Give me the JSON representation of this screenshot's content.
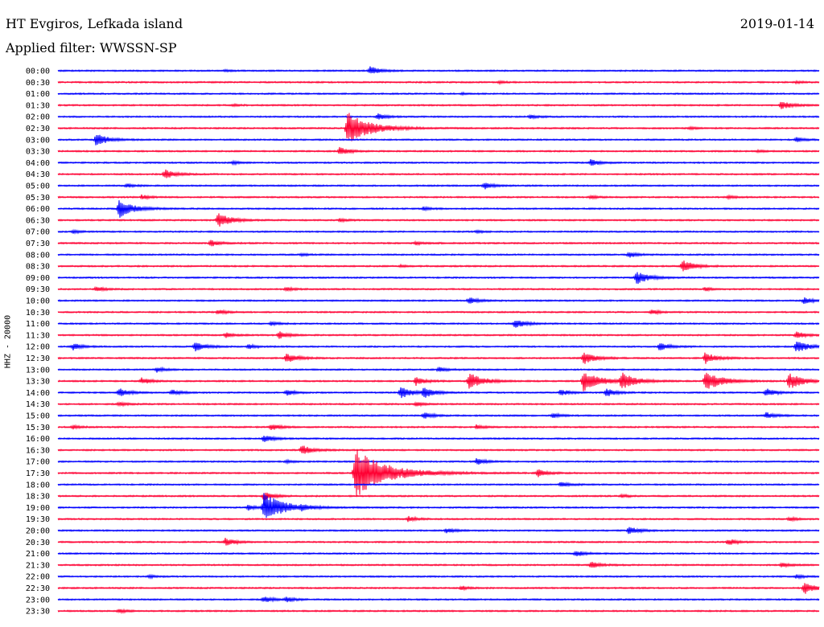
{
  "header": {
    "station": "HT Evgiros, Lefkada island",
    "filter": "Applied filter: WWSSN-SP",
    "date": "2019-01-14"
  },
  "colors": {
    "trace_a": "#0000ff",
    "trace_b": "#ff0033",
    "background": "#ffffff",
    "text": "#000000"
  },
  "chart_data": {
    "type": "line",
    "title": "HT Evgiros, Lefkada island",
    "subtitle": "Applied filter: WWSSN-SP",
    "date": "2019-01-14",
    "ylabel": "HHZ - 20000",
    "xlabel": "",
    "grid": false,
    "legend": "none",
    "alternating_colors": [
      "#0000ff",
      "#ff0033"
    ],
    "rows": [
      "00:00",
      "00:30",
      "01:00",
      "01:30",
      "02:00",
      "02:30",
      "03:00",
      "03:30",
      "04:00",
      "04:30",
      "05:00",
      "05:30",
      "06:00",
      "06:30",
      "07:00",
      "07:30",
      "08:00",
      "08:30",
      "09:00",
      "09:30",
      "10:00",
      "10:30",
      "11:00",
      "11:30",
      "12:00",
      "12:30",
      "13:00",
      "13:30",
      "14:00",
      "14:30",
      "15:00",
      "15:30",
      "16:00",
      "16:30",
      "17:00",
      "17:30",
      "18:00",
      "18:30",
      "19:00",
      "19:30",
      "20:00",
      "20:30",
      "21:00",
      "21:30",
      "22:00",
      "22:30",
      "23:00",
      "23:30"
    ],
    "events": [
      {
        "row": 0,
        "x": 0.41,
        "amp": 1.0
      },
      {
        "row": 0,
        "x": 0.22,
        "amp": 0.2
      },
      {
        "row": 1,
        "x": 0.58,
        "amp": 0.3
      },
      {
        "row": 1,
        "x": 0.97,
        "amp": 0.25
      },
      {
        "row": 2,
        "x": 0.53,
        "amp": 0.2
      },
      {
        "row": 3,
        "x": 0.95,
        "amp": 1.1
      },
      {
        "row": 3,
        "x": 0.23,
        "amp": 0.2
      },
      {
        "row": 4,
        "x": 0.42,
        "amp": 0.8
      },
      {
        "row": 4,
        "x": 0.62,
        "amp": 0.5
      },
      {
        "row": 5,
        "x": 0.38,
        "amp": 4.0
      },
      {
        "row": 5,
        "x": 0.83,
        "amp": 0.3
      },
      {
        "row": 6,
        "x": 0.05,
        "amp": 1.5
      },
      {
        "row": 6,
        "x": 0.97,
        "amp": 0.6
      },
      {
        "row": 7,
        "x": 0.37,
        "amp": 1.0
      },
      {
        "row": 7,
        "x": 0.92,
        "amp": 0.3
      },
      {
        "row": 8,
        "x": 0.7,
        "amp": 0.8
      },
      {
        "row": 8,
        "x": 0.23,
        "amp": 0.4
      },
      {
        "row": 9,
        "x": 0.14,
        "amp": 1.2
      },
      {
        "row": 10,
        "x": 0.56,
        "amp": 0.8
      },
      {
        "row": 10,
        "x": 0.09,
        "amp": 0.5
      },
      {
        "row": 11,
        "x": 0.11,
        "amp": 0.6
      },
      {
        "row": 11,
        "x": 0.7,
        "amp": 0.4
      },
      {
        "row": 11,
        "x": 0.88,
        "amp": 0.4
      },
      {
        "row": 12,
        "x": 0.08,
        "amp": 2.2
      },
      {
        "row": 12,
        "x": 0.48,
        "amp": 0.4
      },
      {
        "row": 13,
        "x": 0.21,
        "amp": 1.8
      },
      {
        "row": 13,
        "x": 0.37,
        "amp": 0.4
      },
      {
        "row": 14,
        "x": 0.02,
        "amp": 0.4
      },
      {
        "row": 14,
        "x": 0.55,
        "amp": 0.3
      },
      {
        "row": 15,
        "x": 0.2,
        "amp": 0.8
      },
      {
        "row": 15,
        "x": 0.47,
        "amp": 0.4
      },
      {
        "row": 16,
        "x": 0.75,
        "amp": 0.7
      },
      {
        "row": 16,
        "x": 0.32,
        "amp": 0.3
      },
      {
        "row": 17,
        "x": 0.82,
        "amp": 1.5
      },
      {
        "row": 17,
        "x": 0.45,
        "amp": 0.3
      },
      {
        "row": 18,
        "x": 0.76,
        "amp": 1.6
      },
      {
        "row": 19,
        "x": 0.05,
        "amp": 0.6
      },
      {
        "row": 19,
        "x": 0.3,
        "amp": 0.5
      },
      {
        "row": 19,
        "x": 0.85,
        "amp": 0.5
      },
      {
        "row": 20,
        "x": 0.54,
        "amp": 0.8
      },
      {
        "row": 20,
        "x": 0.98,
        "amp": 0.8
      },
      {
        "row": 21,
        "x": 0.21,
        "amp": 0.6
      },
      {
        "row": 21,
        "x": 0.78,
        "amp": 0.6
      },
      {
        "row": 22,
        "x": 0.6,
        "amp": 1.2
      },
      {
        "row": 22,
        "x": 0.28,
        "amp": 0.5
      },
      {
        "row": 23,
        "x": 0.22,
        "amp": 0.6
      },
      {
        "row": 23,
        "x": 0.29,
        "amp": 0.9
      },
      {
        "row": 23,
        "x": 0.97,
        "amp": 0.9
      },
      {
        "row": 24,
        "x": 0.02,
        "amp": 0.8
      },
      {
        "row": 24,
        "x": 0.18,
        "amp": 1.2
      },
      {
        "row": 24,
        "x": 0.25,
        "amp": 0.6
      },
      {
        "row": 24,
        "x": 0.79,
        "amp": 1.0
      },
      {
        "row": 24,
        "x": 0.97,
        "amp": 1.5
      },
      {
        "row": 25,
        "x": 0.3,
        "amp": 1.2
      },
      {
        "row": 25,
        "x": 0.69,
        "amp": 1.5
      },
      {
        "row": 25,
        "x": 0.85,
        "amp": 1.4
      },
      {
        "row": 26,
        "x": 0.13,
        "amp": 0.6
      },
      {
        "row": 26,
        "x": 0.5,
        "amp": 0.6
      },
      {
        "row": 27,
        "x": 0.11,
        "amp": 0.8
      },
      {
        "row": 27,
        "x": 0.47,
        "amp": 1.0
      },
      {
        "row": 27,
        "x": 0.54,
        "amp": 2.0
      },
      {
        "row": 27,
        "x": 0.69,
        "amp": 2.5
      },
      {
        "row": 27,
        "x": 0.74,
        "amp": 2.0
      },
      {
        "row": 27,
        "x": 0.85,
        "amp": 2.5
      },
      {
        "row": 27,
        "x": 0.96,
        "amp": 2.0
      },
      {
        "row": 28,
        "x": 0.08,
        "amp": 1.1
      },
      {
        "row": 28,
        "x": 0.15,
        "amp": 0.7
      },
      {
        "row": 28,
        "x": 0.3,
        "amp": 0.7
      },
      {
        "row": 28,
        "x": 0.45,
        "amp": 1.5
      },
      {
        "row": 28,
        "x": 0.48,
        "amp": 1.3
      },
      {
        "row": 28,
        "x": 0.66,
        "amp": 0.8
      },
      {
        "row": 28,
        "x": 0.72,
        "amp": 1.0
      },
      {
        "row": 28,
        "x": 0.93,
        "amp": 1.0
      },
      {
        "row": 29,
        "x": 0.08,
        "amp": 0.5
      },
      {
        "row": 29,
        "x": 0.47,
        "amp": 0.5
      },
      {
        "row": 30,
        "x": 0.48,
        "amp": 0.8
      },
      {
        "row": 30,
        "x": 0.65,
        "amp": 0.6
      },
      {
        "row": 30,
        "x": 0.93,
        "amp": 0.8
      },
      {
        "row": 31,
        "x": 0.02,
        "amp": 0.4
      },
      {
        "row": 31,
        "x": 0.28,
        "amp": 0.8
      },
      {
        "row": 31,
        "x": 0.55,
        "amp": 0.6
      },
      {
        "row": 32,
        "x": 0.27,
        "amp": 1.0
      },
      {
        "row": 33,
        "x": 0.32,
        "amp": 1.2
      },
      {
        "row": 34,
        "x": 0.55,
        "amp": 0.8
      },
      {
        "row": 34,
        "x": 0.3,
        "amp": 0.4
      },
      {
        "row": 35,
        "x": 0.39,
        "amp": 6.0
      },
      {
        "row": 35,
        "x": 0.63,
        "amp": 0.9
      },
      {
        "row": 36,
        "x": 0.66,
        "amp": 0.7
      },
      {
        "row": 37,
        "x": 0.27,
        "amp": 1.0
      },
      {
        "row": 37,
        "x": 0.74,
        "amp": 0.4
      },
      {
        "row": 38,
        "x": 0.27,
        "amp": 3.5
      },
      {
        "row": 38,
        "x": 0.25,
        "amp": 0.7
      },
      {
        "row": 38,
        "x": 0.32,
        "amp": 0.5
      },
      {
        "row": 39,
        "x": 0.46,
        "amp": 0.7
      },
      {
        "row": 39,
        "x": 0.96,
        "amp": 0.5
      },
      {
        "row": 40,
        "x": 0.75,
        "amp": 1.0
      },
      {
        "row": 40,
        "x": 0.51,
        "amp": 0.6
      },
      {
        "row": 41,
        "x": 0.22,
        "amp": 1.0
      },
      {
        "row": 41,
        "x": 0.88,
        "amp": 0.8
      },
      {
        "row": 42,
        "x": 0.68,
        "amp": 0.8
      },
      {
        "row": 43,
        "x": 0.7,
        "amp": 0.8
      },
      {
        "row": 43,
        "x": 0.95,
        "amp": 0.6
      },
      {
        "row": 44,
        "x": 0.12,
        "amp": 0.4
      },
      {
        "row": 44,
        "x": 0.97,
        "amp": 0.5
      },
      {
        "row": 45,
        "x": 0.53,
        "amp": 0.5
      },
      {
        "row": 45,
        "x": 0.98,
        "amp": 1.5
      },
      {
        "row": 46,
        "x": 0.27,
        "amp": 0.8
      },
      {
        "row": 46,
        "x": 0.3,
        "amp": 0.6
      },
      {
        "row": 47,
        "x": 0.08,
        "amp": 0.5
      }
    ]
  }
}
